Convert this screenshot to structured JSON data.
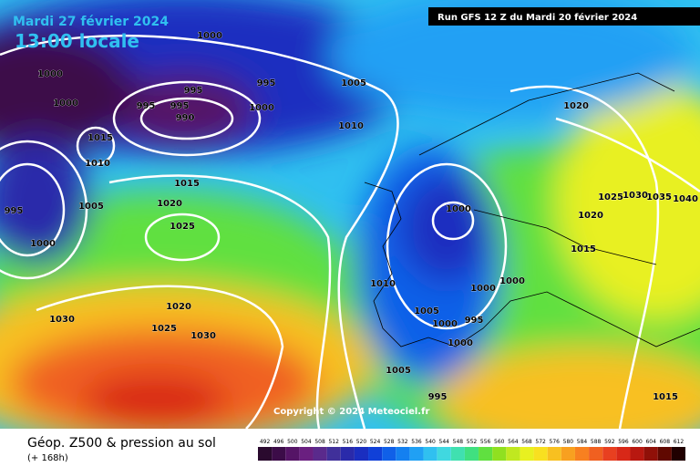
{
  "header": {
    "date": "Mardi 27 février 2024",
    "time": "13:00 locale",
    "run": "Run GFS 12 Z du Mardi 20 février 2024"
  },
  "footer": {
    "title": "Géop. Z500 & pression au sol",
    "lead": "(+ 168h)",
    "copyright": "Copyright © 2024 Meteociel.fr"
  },
  "isobar_labels": [
    1000,
    1000,
    1000,
    995,
    995,
    995,
    995,
    990,
    1000,
    1005,
    1010,
    1015,
    1010,
    1015,
    1005,
    1020,
    995,
    1025,
    1000,
    1000,
    1020,
    1025,
    1030,
    1035,
    1040,
    1020,
    1015,
    1000,
    1000,
    1010,
    1005,
    1000,
    995,
    1000,
    1020,
    1030,
    1025,
    1030,
    1005,
    995,
    1015
  ],
  "colorbar": {
    "ticks": [
      492,
      496,
      500,
      504,
      508,
      512,
      516,
      520,
      524,
      528,
      532,
      536,
      540,
      544,
      548,
      552,
      556,
      560,
      564,
      568,
      572,
      576,
      580,
      584,
      588,
      592,
      596,
      600,
      604,
      608,
      612
    ],
    "colors": [
      "#2a0a2e",
      "#3c0c48",
      "#551466",
      "#6a1f80",
      "#5a2a8c",
      "#40309a",
      "#2a2aaa",
      "#1a2ec0",
      "#1040d8",
      "#1060e8",
      "#1480f0",
      "#20a0f4",
      "#30c0f0",
      "#40d8e0",
      "#40e0b0",
      "#40e080",
      "#60e040",
      "#90e020",
      "#c0e820",
      "#e8f020",
      "#f8e020",
      "#f8c020",
      "#f8a020",
      "#f88020",
      "#f06020",
      "#e84020",
      "#d82818",
      "#b81810",
      "#901008",
      "#600800",
      "#200000"
    ]
  }
}
